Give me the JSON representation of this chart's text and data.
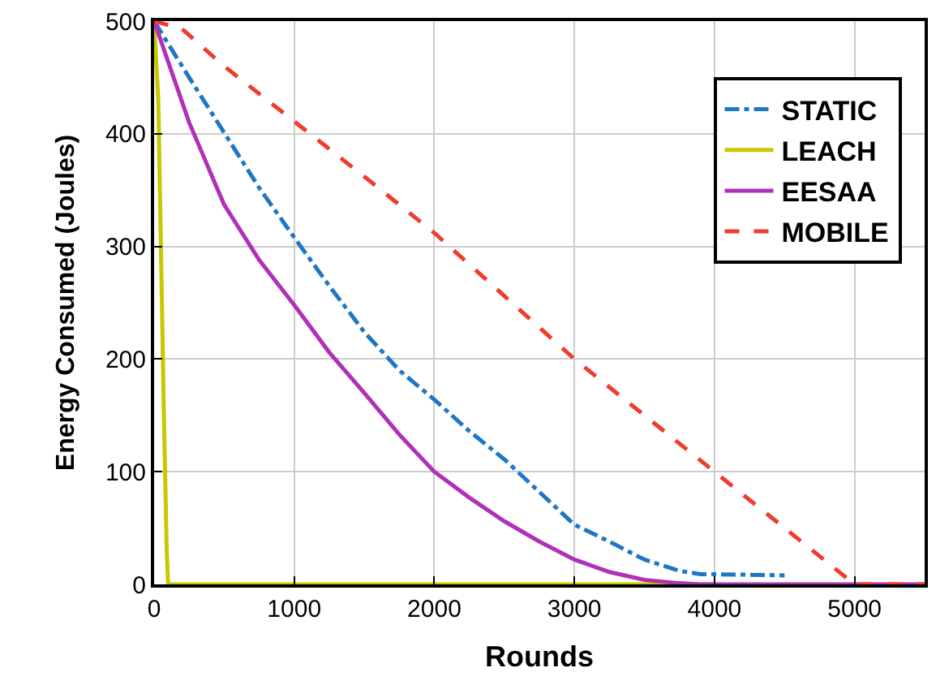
{
  "chart_data": {
    "type": "line",
    "xlabel": "Rounds",
    "ylabel": "Energy Consumed (Joules)",
    "xlim": [
      0,
      5500
    ],
    "ylim": [
      0,
      500
    ],
    "xticks": [
      0,
      1000,
      2000,
      3000,
      4000,
      5000
    ],
    "yticks": [
      0,
      100,
      200,
      300,
      400,
      500
    ],
    "grid": true,
    "legend": "top right",
    "marker": "none",
    "series": [
      {
        "name": "STATIC",
        "color": "#1f77c4",
        "line_style": "dashdot",
        "x": [
          0,
          250,
          500,
          750,
          1000,
          1250,
          1500,
          1750,
          2000,
          2250,
          2500,
          2750,
          3000,
          3250,
          3500,
          3750,
          3900,
          4000,
          4500
        ],
        "values": [
          500,
          450,
          401,
          352,
          308,
          265,
          224,
          190,
          164,
          136,
          111,
          82,
          53,
          38,
          22,
          12,
          9,
          9,
          8
        ]
      },
      {
        "name": "LEACH",
        "color": "#c8c800",
        "line_style": "solid",
        "x": [
          0,
          30,
          50,
          70,
          90,
          100,
          4000
        ],
        "values": [
          500,
          430,
          290,
          150,
          30,
          0,
          0
        ]
      },
      {
        "name": "EESAA",
        "color": "#b030b8",
        "line_style": "solid",
        "x": [
          0,
          250,
          500,
          750,
          1000,
          1250,
          1500,
          1750,
          2000,
          2250,
          2500,
          2750,
          3000,
          3250,
          3500,
          3750,
          3900,
          5500
        ],
        "values": [
          500,
          410,
          337,
          288,
          248,
          206,
          170,
          133,
          100,
          77,
          56,
          38,
          22,
          11,
          4,
          1,
          0,
          0
        ]
      },
      {
        "name": "MOBILE",
        "color": "#f03c2c",
        "line_style": "dashed",
        "x": [
          0,
          200,
          500,
          1000,
          1500,
          2000,
          2500,
          3000,
          3500,
          4000,
          4500,
          5000,
          5500
        ],
        "values": [
          500,
          493,
          460,
          411,
          362,
          312,
          256,
          200,
          150,
          100,
          50,
          0,
          0
        ]
      }
    ]
  }
}
